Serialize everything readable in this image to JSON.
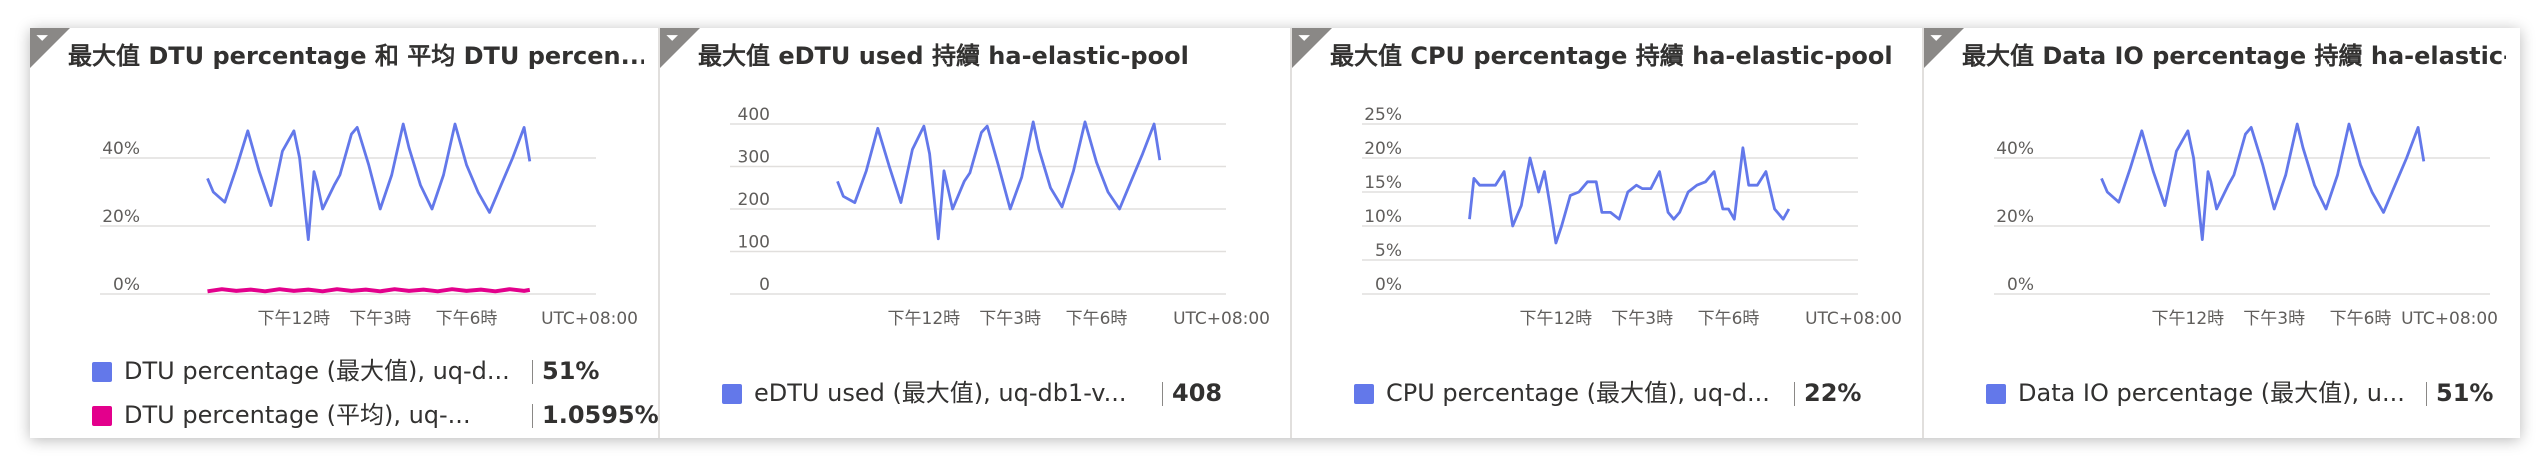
{
  "tiles": [
    {
      "title": "最大值 DTU percentage 和 平均 DTU percen...",
      "pin_icon": "funnel-icon",
      "legend": [
        {
          "name": "DTU percentage (最大值), uq-d...",
          "value": "51%",
          "color": "#6378ea"
        },
        {
          "name": "DTU percentage (平均), uq-...",
          "value": "1.0595%",
          "color": "#e3008c"
        }
      ]
    },
    {
      "title": "最大值 eDTU used 持續 ha-elastic-pool",
      "pin_icon": "funnel-icon",
      "legend": [
        {
          "name": "eDTU used (最大值), uq-db1-v...",
          "value": "408",
          "color": "#6378ea"
        }
      ]
    },
    {
      "title": "最大值 CPU percentage 持續 ha-elastic-pool",
      "pin_icon": "funnel-icon",
      "legend": [
        {
          "name": "CPU percentage (最大值), uq-d...",
          "value": "22%",
          "color": "#6378ea"
        }
      ]
    },
    {
      "title": "最大值 Data IO percentage 持續 ha-elastic-...",
      "pin_icon": "funnel-icon",
      "legend": [
        {
          "name": "Data IO percentage (最大值), u...",
          "value": "51%",
          "color": "#6378ea"
        }
      ]
    }
  ],
  "chart_data": [
    {
      "type": "line",
      "title": "最大值 DTU percentage 和 平均 DTU percen...",
      "y_ticks": [
        "0%",
        "20%",
        "40%"
      ],
      "ylim": [
        0,
        50
      ],
      "x_ticks": [
        "下午12時",
        "下午3時",
        "下午6時"
      ],
      "x_tick_positions": [
        3,
        6,
        9
      ],
      "x_timezone": "UTC+08:00",
      "xlim": [
        -2,
        13.5
      ],
      "grid": true,
      "series": [
        {
          "name": "DTU percentage (最大值), uq-d...",
          "color": "#6378ea",
          "x": [
            0,
            0.2,
            0.6,
            1.0,
            1.4,
            1.8,
            2.2,
            2.6,
            3.0,
            3.2,
            3.5,
            3.7,
            3.8,
            4.0,
            4.4,
            4.6,
            5.0,
            5.2,
            5.6,
            6.0,
            6.4,
            6.8,
            7.0,
            7.4,
            7.8,
            8.2,
            8.6,
            9.0,
            9.4,
            9.8,
            10.2,
            10.6,
            11.0,
            11.2
          ],
          "values": [
            34,
            30,
            27,
            37,
            48,
            36,
            26,
            42,
            48,
            40,
            16,
            36,
            33,
            25,
            32,
            35,
            47,
            49,
            38,
            25,
            35,
            50,
            43,
            32,
            25,
            35,
            50,
            38,
            30,
            24,
            32,
            40,
            49,
            39
          ]
        },
        {
          "name": "DTU percentage (平均), uq-...",
          "color": "#e3008c",
          "x": [
            0,
            0.5,
            1.0,
            1.5,
            2.0,
            2.5,
            3.0,
            3.5,
            4.0,
            4.5,
            5.0,
            5.5,
            6.0,
            6.5,
            7.0,
            7.5,
            8.0,
            8.5,
            9.0,
            9.5,
            10.0,
            10.5,
            11.0,
            11.2
          ],
          "values": [
            0.8,
            1.4,
            0.9,
            1.3,
            0.8,
            1.4,
            0.9,
            1.3,
            0.8,
            1.4,
            0.9,
            1.3,
            0.8,
            1.4,
            0.9,
            1.3,
            0.8,
            1.4,
            0.9,
            1.3,
            0.8,
            1.4,
            0.9,
            1.2
          ]
        }
      ]
    },
    {
      "type": "line",
      "title": "最大值 eDTU used 持續 ha-elastic-pool",
      "y_ticks": [
        "0",
        "100",
        "200",
        "300",
        "400"
      ],
      "ylim": [
        0,
        400
      ],
      "x_ticks": [
        "下午12時",
        "下午3時",
        "下午6時"
      ],
      "x_tick_positions": [
        3,
        6,
        9
      ],
      "x_timezone": "UTC+08:00",
      "xlim": [
        -2,
        13.5
      ],
      "grid": true,
      "series": [
        {
          "name": "eDTU used (最大值), uq-db1-v...",
          "color": "#6378ea",
          "x": [
            0,
            0.2,
            0.6,
            1.0,
            1.4,
            1.8,
            2.2,
            2.6,
            3.0,
            3.2,
            3.5,
            3.7,
            4.0,
            4.4,
            4.6,
            5.0,
            5.2,
            5.6,
            6.0,
            6.4,
            6.8,
            7.0,
            7.4,
            7.8,
            8.2,
            8.6,
            9.0,
            9.4,
            9.8,
            10.2,
            10.6,
            11.0,
            11.2
          ],
          "values": [
            265,
            230,
            215,
            290,
            390,
            300,
            215,
            340,
            395,
            330,
            130,
            290,
            200,
            265,
            285,
            380,
            395,
            300,
            200,
            275,
            405,
            340,
            250,
            205,
            290,
            405,
            310,
            240,
            200,
            265,
            330,
            400,
            315
          ]
        }
      ]
    },
    {
      "type": "line",
      "title": "最大值 CPU percentage 持續 ha-elastic-pool",
      "y_ticks": [
        "0%",
        "5%",
        "10%",
        "15%",
        "20%",
        "25%"
      ],
      "ylim": [
        0,
        25
      ],
      "x_ticks": [
        "下午12時",
        "下午3時",
        "下午6時"
      ],
      "x_tick_positions": [
        3,
        6,
        9
      ],
      "x_timezone": "UTC+08:00",
      "xlim": [
        -2,
        13.5
      ],
      "grid": true,
      "series": [
        {
          "name": "CPU percentage (最大值), uq-d...",
          "color": "#6378ea",
          "x": [
            0,
            0.15,
            0.35,
            0.6,
            0.9,
            1.2,
            1.5,
            1.8,
            2.1,
            2.4,
            2.6,
            2.8,
            3.0,
            3.2,
            3.5,
            3.8,
            4.1,
            4.4,
            4.6,
            4.9,
            5.2,
            5.5,
            5.8,
            6.0,
            6.3,
            6.6,
            6.9,
            7.1,
            7.3,
            7.6,
            7.9,
            8.2,
            8.5,
            8.8,
            9.0,
            9.2,
            9.5,
            9.7,
            10.0,
            10.3,
            10.6,
            10.9,
            11.1
          ],
          "values": [
            11,
            17,
            16,
            16,
            16,
            18,
            10,
            13,
            20,
            15,
            18,
            13,
            7.5,
            10,
            14.5,
            15,
            16.5,
            16.5,
            12,
            12,
            11,
            15,
            16,
            15.5,
            15.5,
            18,
            12,
            11,
            12,
            15,
            16,
            16.5,
            18,
            12.5,
            12.5,
            11,
            21.5,
            16,
            16,
            18,
            12.5,
            11,
            12.5
          ]
        }
      ]
    },
    {
      "type": "line",
      "title": "最大值 Data IO percentage 持續 ha-elastic-...",
      "y_ticks": [
        "0%",
        "20%",
        "40%"
      ],
      "ylim": [
        0,
        50
      ],
      "x_ticks": [
        "下午12時",
        "下午3時",
        "下午6時"
      ],
      "x_tick_positions": [
        3,
        6,
        9
      ],
      "x_timezone": "UTC+08:00",
      "xlim": [
        -2,
        13.5
      ],
      "grid": true,
      "series": [
        {
          "name": "Data IO percentage (最大值), u...",
          "color": "#6378ea",
          "x": [
            0,
            0.2,
            0.6,
            1.0,
            1.4,
            1.8,
            2.2,
            2.6,
            3.0,
            3.2,
            3.5,
            3.7,
            3.8,
            4.0,
            4.4,
            4.6,
            5.0,
            5.2,
            5.6,
            6.0,
            6.4,
            6.8,
            7.0,
            7.4,
            7.8,
            8.2,
            8.6,
            9.0,
            9.4,
            9.8,
            10.2,
            10.6,
            11.0,
            11.2
          ],
          "values": [
            34,
            30,
            27,
            37,
            48,
            36,
            26,
            42,
            48,
            40,
            16,
            36,
            33,
            25,
            32,
            35,
            47,
            49,
            38,
            25,
            35,
            50,
            43,
            32,
            25,
            35,
            50,
            38,
            30,
            24,
            32,
            40,
            49,
            39
          ]
        }
      ]
    }
  ]
}
